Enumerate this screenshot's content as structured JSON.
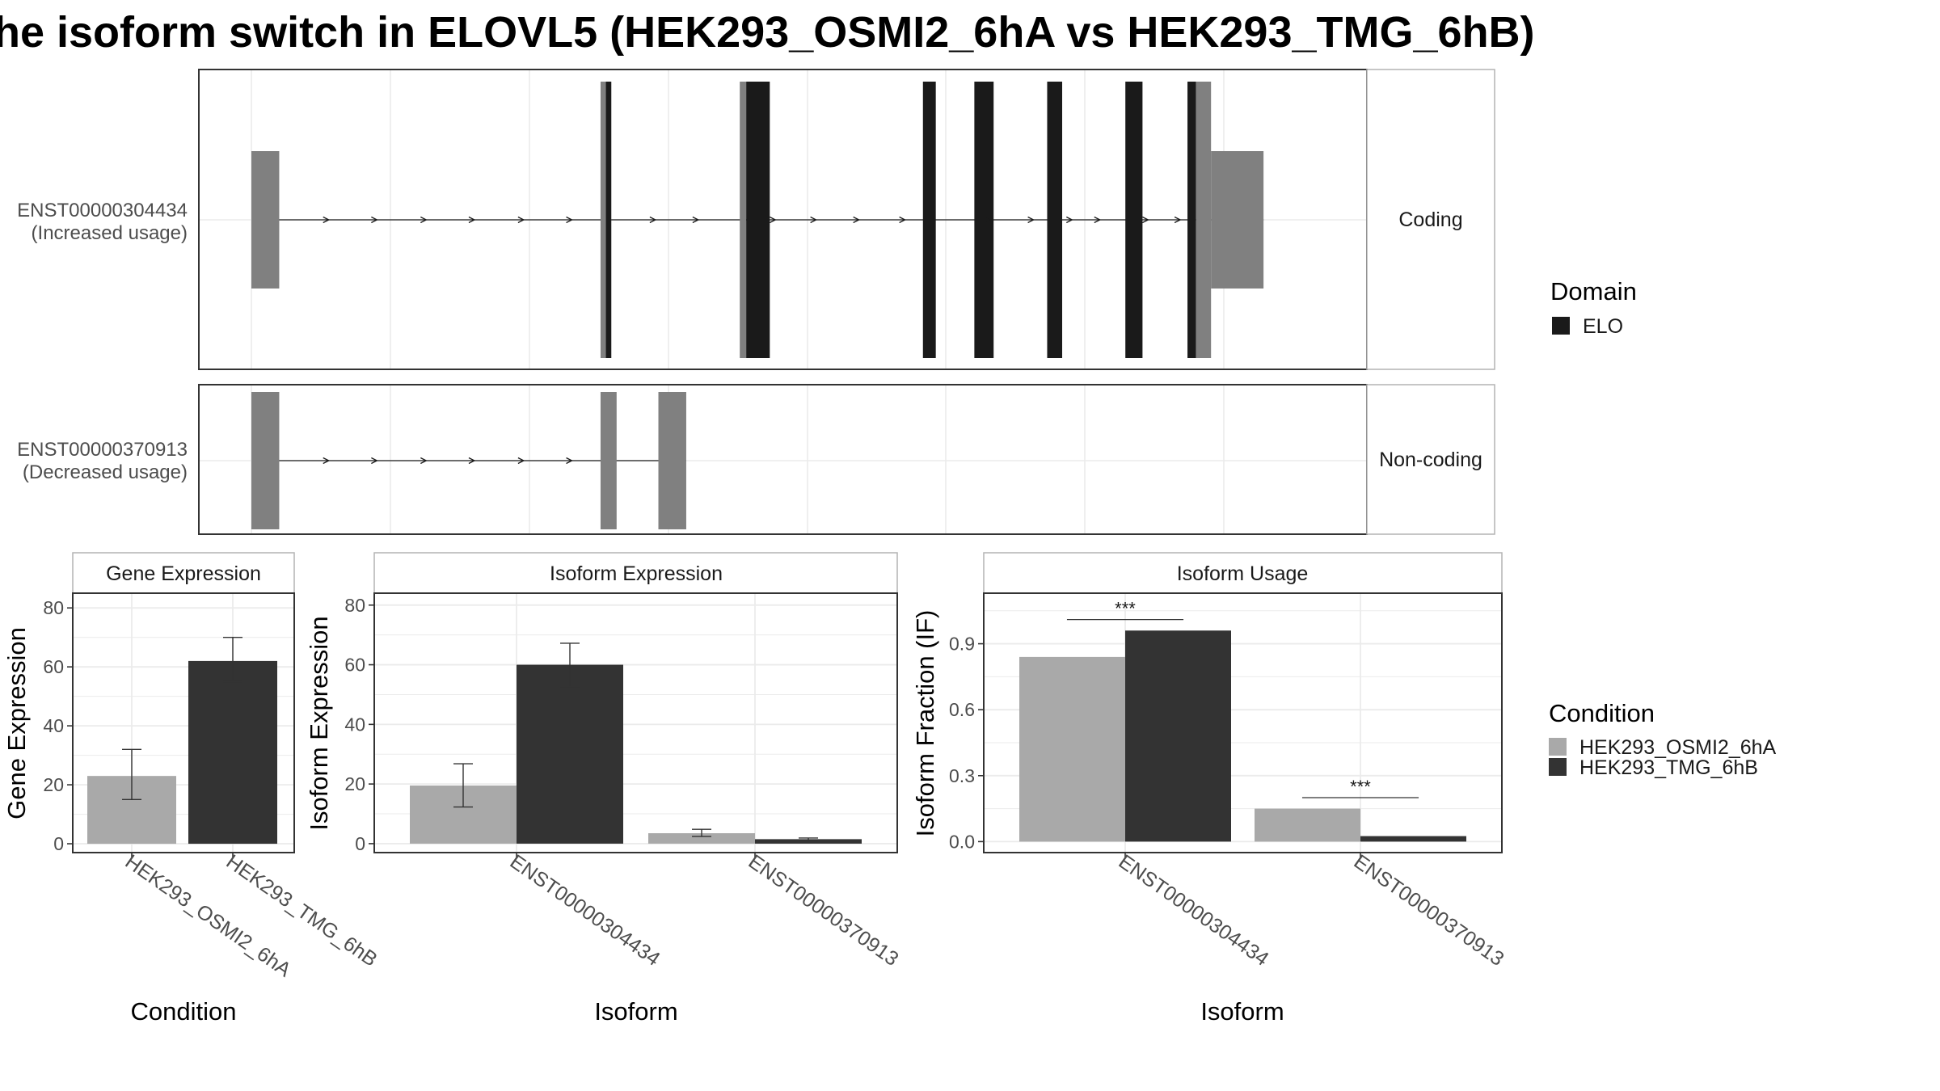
{
  "title": "he isoform switch in ELOVL5 (HEK293_OSMI2_6hA vs HEK293_TMG_6hB)",
  "colors": {
    "domain": "#1a1a1a",
    "exon": "#808080",
    "condition_a": "#a9a9a9",
    "condition_b": "#333333",
    "frame": "#333333",
    "grid": "#ebebeb",
    "strip_border": "#b3b3b3"
  },
  "gene_structure": {
    "x_range": [
      0,
      1000
    ],
    "tracks": [
      {
        "id": "ENST00000304434",
        "label": "ENST00000304434",
        "sublabel": "(Increased usage)",
        "facet": "Coding",
        "segments": [
          {
            "start": 0,
            "end": 26,
            "type": "utr"
          },
          {
            "start": 326,
            "end": 336,
            "type": "cds"
          },
          {
            "start": 331,
            "end": 336,
            "type": "domain"
          },
          {
            "start": 456,
            "end": 462,
            "type": "cds"
          },
          {
            "start": 462,
            "end": 484,
            "type": "domain"
          },
          {
            "start": 627,
            "end": 639,
            "type": "domain"
          },
          {
            "start": 675,
            "end": 693,
            "type": "domain"
          },
          {
            "start": 743,
            "end": 757,
            "type": "domain"
          },
          {
            "start": 816,
            "end": 832,
            "type": "domain"
          },
          {
            "start": 874,
            "end": 882,
            "type": "domain"
          },
          {
            "start": 882,
            "end": 896,
            "type": "cds"
          },
          {
            "start": 896,
            "end": 945,
            "type": "utr"
          }
        ],
        "arrows": [
          70,
          115,
          161,
          206,
          252,
          297,
          375,
          415,
          487,
          525,
          565,
          608,
          689,
          728,
          764,
          790,
          835,
          865
        ]
      },
      {
        "id": "ENST00000370913",
        "label": "ENST00000370913",
        "sublabel": "(Decreased usage)",
        "facet": "Non-coding",
        "segments": [
          {
            "start": 0,
            "end": 26,
            "type": "exon"
          },
          {
            "start": 326,
            "end": 341,
            "type": "exon"
          },
          {
            "start": 380,
            "end": 406,
            "type": "exon"
          }
        ],
        "arrows": [
          70,
          115,
          161,
          206,
          252,
          297
        ]
      }
    ]
  },
  "legend_domain": {
    "title": "Domain",
    "items": [
      {
        "label": "ELO",
        "color": "#1a1a1a"
      }
    ]
  },
  "legend_condition": {
    "title": "Condition",
    "items": [
      {
        "label": "HEK293_OSMI2_6hA",
        "color": "#a9a9a9"
      },
      {
        "label": "HEK293_TMG_6hB",
        "color": "#333333"
      }
    ]
  },
  "chart_data": [
    {
      "type": "bar",
      "title": "Gene Expression",
      "xlabel": "Condition",
      "ylabel": "Gene Expression",
      "ylim": [
        -3,
        85
      ],
      "yticks": [
        0,
        20,
        40,
        60,
        80
      ],
      "categories": [
        "HEK293_OSMI2_6hA",
        "HEK293_TMG_6hB"
      ],
      "values": [
        23,
        62
      ],
      "error_low": [
        15,
        55
      ],
      "error_high": [
        32,
        70
      ]
    },
    {
      "type": "bar",
      "title": "Isoform Expression",
      "xlabel": "Isoform",
      "ylabel": "Isoform Expression",
      "ylim": [
        -3,
        84
      ],
      "yticks": [
        0,
        20,
        40,
        60,
        80
      ],
      "categories": [
        "ENST00000304434",
        "ENST00000370913"
      ],
      "series": [
        {
          "name": "HEK293_OSMI2_6hA",
          "values": [
            19.5,
            3.5
          ],
          "error_low": [
            12.3,
            2.4
          ],
          "error_high": [
            26.8,
            4.8
          ]
        },
        {
          "name": "HEK293_TMG_6hB",
          "values": [
            60,
            1.5
          ],
          "error_low": [
            52.5,
            1.2
          ],
          "error_high": [
            67.2,
            1.9
          ]
        }
      ]
    },
    {
      "type": "bar",
      "title": "Isoform Usage",
      "xlabel": "Isoform",
      "ylabel": "Isoform Fraction (IF)",
      "ylim": [
        -0.05,
        1.13
      ],
      "yticks": [
        0.0,
        0.3,
        0.6,
        0.9
      ],
      "categories": [
        "ENST00000304434",
        "ENST00000370913"
      ],
      "series": [
        {
          "name": "HEK293_OSMI2_6hA",
          "values": [
            0.84,
            0.15
          ]
        },
        {
          "name": "HEK293_TMG_6hB",
          "values": [
            0.96,
            0.025
          ]
        }
      ],
      "annotations": [
        {
          "category": "ENST00000304434",
          "label": "***",
          "y": 1.01
        },
        {
          "category": "ENST00000370913",
          "label": "***",
          "y": 0.2
        }
      ]
    }
  ]
}
